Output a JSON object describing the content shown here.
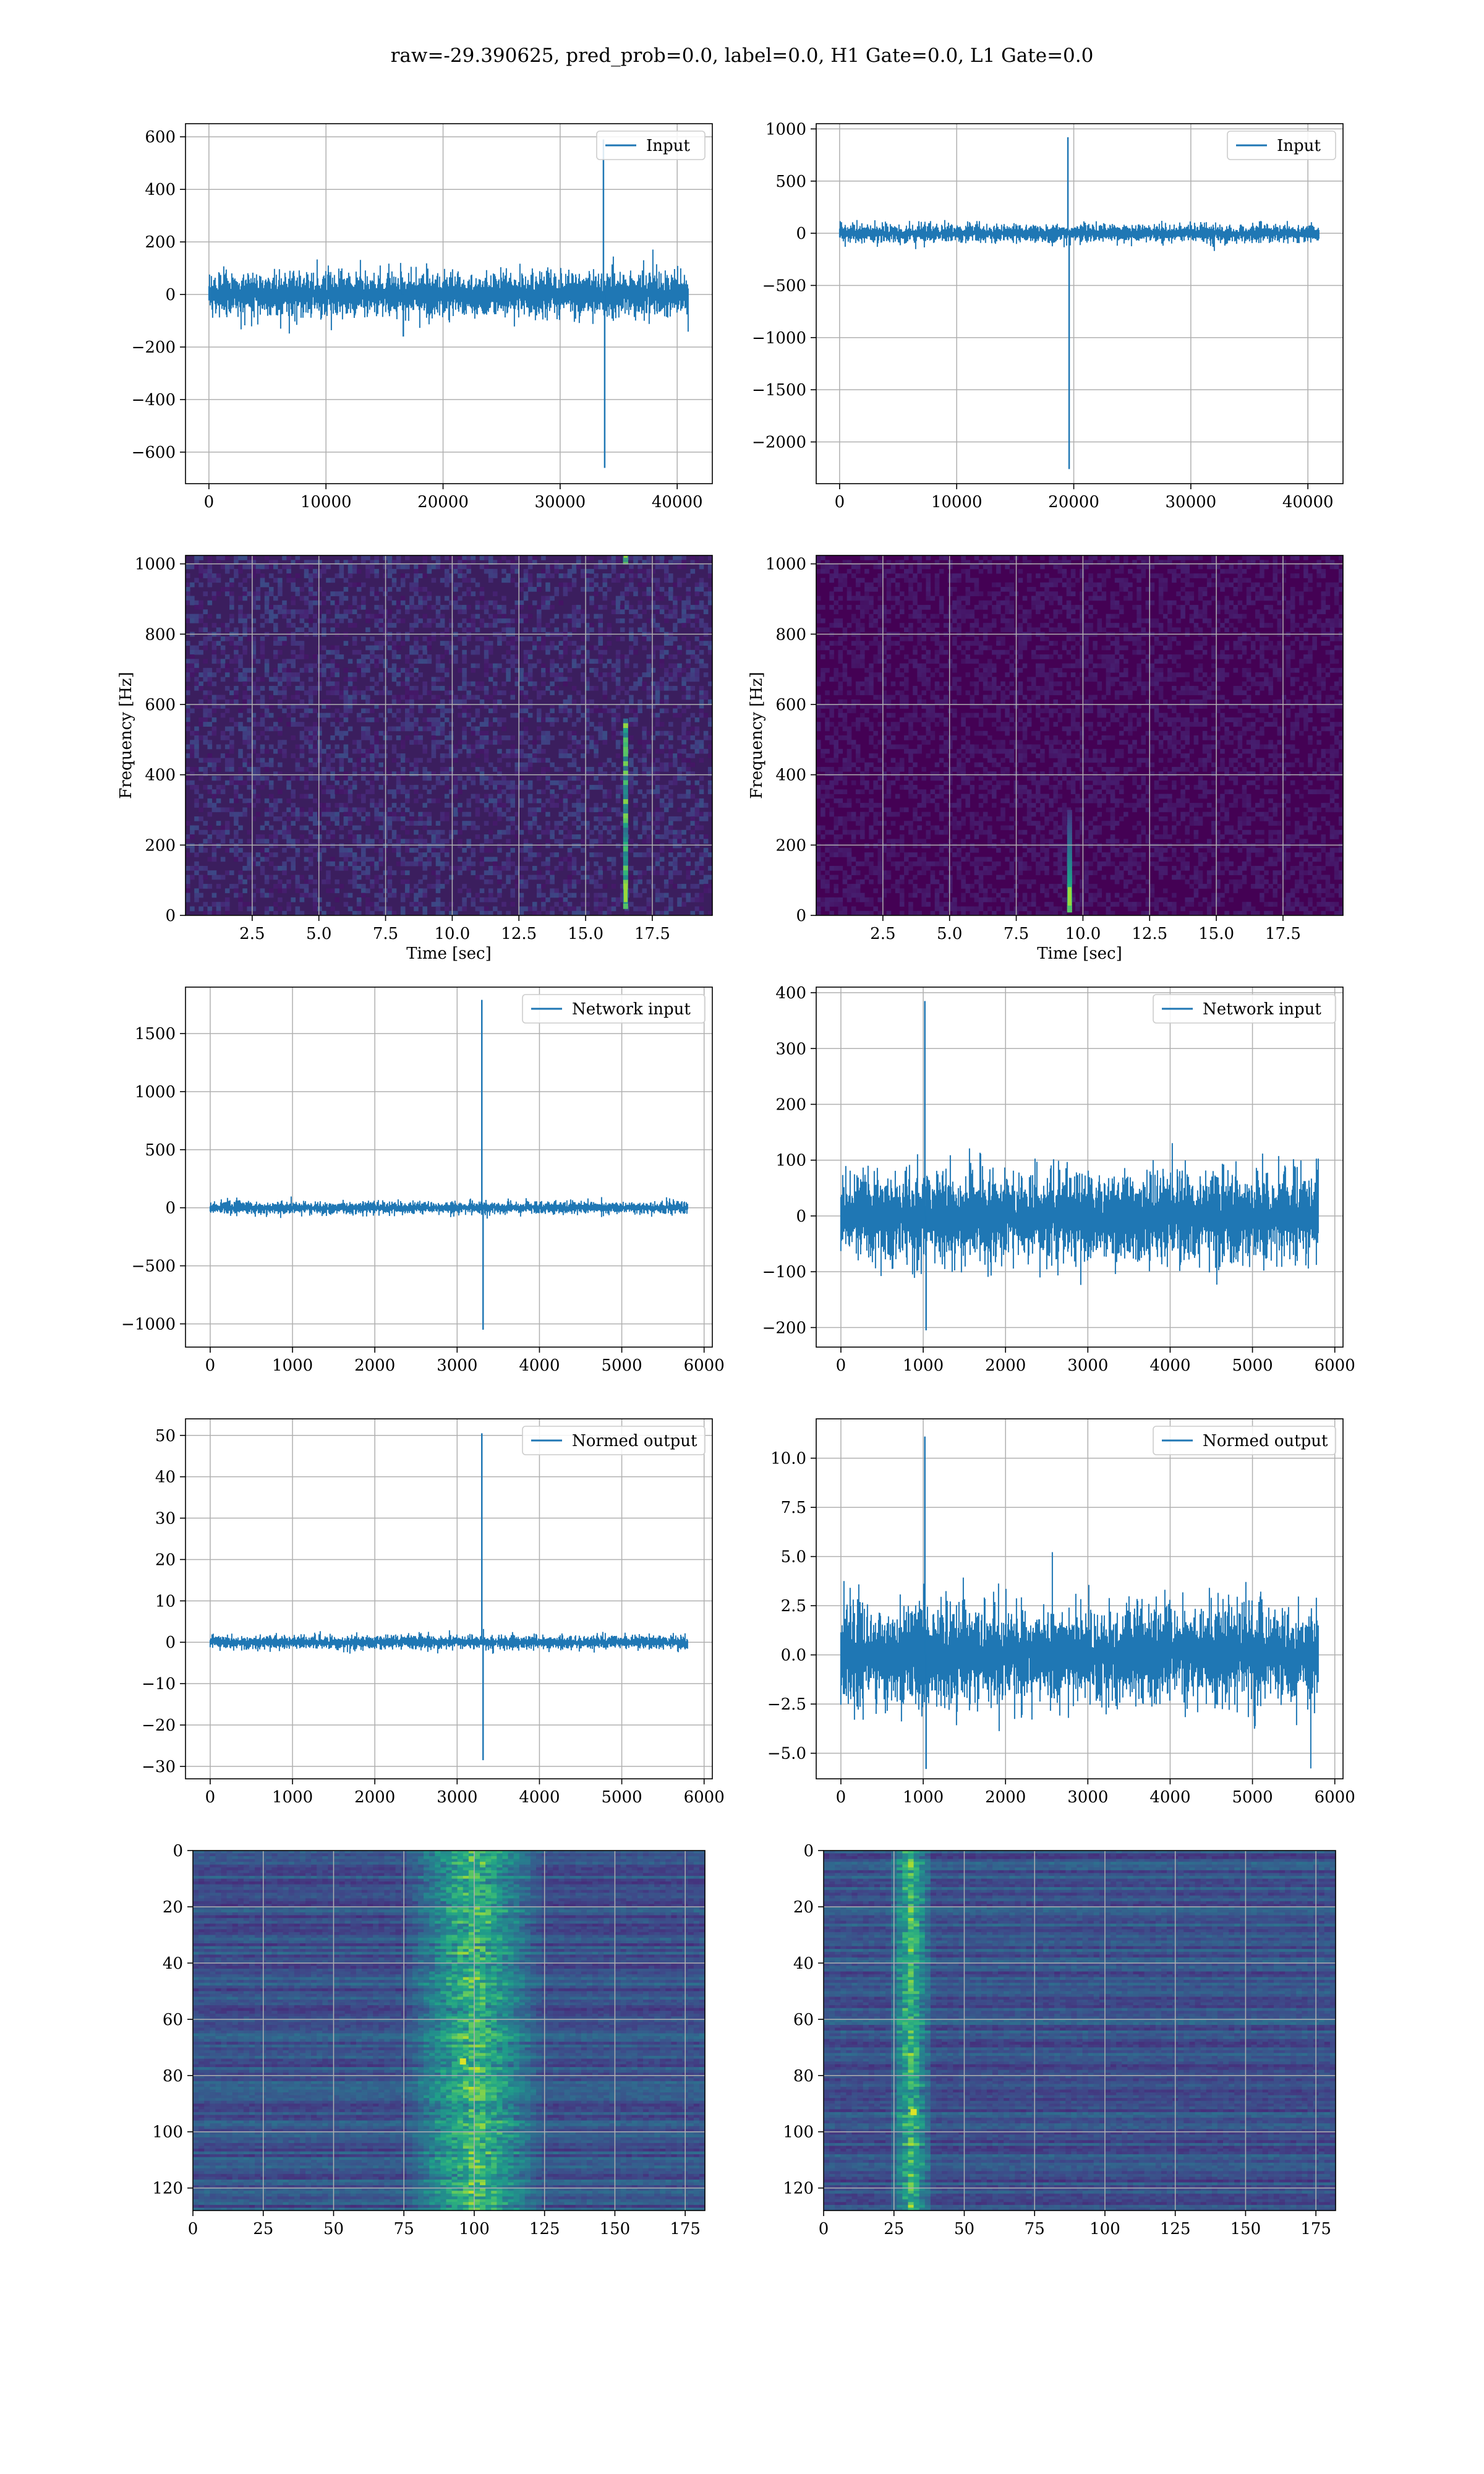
{
  "figure": {
    "suptitle": "raw=-29.390625, pred_prob=0.0, label=0.0, H1 Gate=0.0, L1 Gate=0.0",
    "line_color": "#1f77b4",
    "grid_color": "#b0b0b0"
  },
  "chart_data": [
    {
      "id": "input-h1",
      "type": "line",
      "xlabel": "",
      "ylabel": "",
      "xlim": [
        -2000,
        43000
      ],
      "ylim": [
        -720,
        650
      ],
      "xticks": [
        0,
        10000,
        20000,
        30000,
        40000
      ],
      "yticks": [
        -600,
        -400,
        -200,
        0,
        200,
        400,
        600
      ],
      "xtick_labels": [
        "0",
        "10000",
        "20000",
        "30000",
        "40000"
      ],
      "ytick_labels": [
        "−600",
        "−400",
        "−200",
        "0",
        "200",
        "400",
        "600"
      ],
      "series": [
        {
          "name": "Input",
          "x_range": [
            0,
            40960
          ],
          "noise_amplitude": 70,
          "spikes": [
            {
              "x": 33700,
              "max": 590,
              "min": -660
            },
            {
              "x": 16500,
              "max": 20,
              "min": -160
            }
          ]
        }
      ]
    },
    {
      "id": "input-l1",
      "type": "line",
      "xlabel": "",
      "ylabel": "",
      "xlim": [
        -2000,
        43000
      ],
      "ylim": [
        -2400,
        1050
      ],
      "xticks": [
        0,
        10000,
        20000,
        30000,
        40000
      ],
      "yticks": [
        -2000,
        -1500,
        -1000,
        -500,
        0,
        500,
        1000
      ],
      "xtick_labels": [
        "0",
        "10000",
        "20000",
        "30000",
        "40000"
      ],
      "ytick_labels": [
        "−2000",
        "−1500",
        "−1000",
        "−500",
        "0",
        "500",
        "1000"
      ],
      "series": [
        {
          "name": "Input",
          "x_range": [
            0,
            40960
          ],
          "noise_amplitude": 70,
          "spikes": [
            {
              "x": 19500,
              "max": 920,
              "min": -2260
            }
          ]
        }
      ]
    },
    {
      "id": "spec-h1",
      "type": "heatmap",
      "xlabel": "Time [sec]",
      "ylabel": "Frequency [Hz]",
      "xlim": [
        0,
        19.75
      ],
      "ylim": [
        0,
        1024
      ],
      "xticks": [
        2.5,
        5.0,
        7.5,
        10.0,
        12.5,
        15.0,
        17.5
      ],
      "yticks": [
        0,
        200,
        400,
        600,
        800,
        1000
      ],
      "xtick_labels": [
        "2.5",
        "5.0",
        "7.5",
        "10.0",
        "12.5",
        "15.0",
        "17.5"
      ],
      "ytick_labels": [
        "0",
        "200",
        "400",
        "600",
        "800",
        "1000"
      ],
      "colormap": "viridis",
      "background": "#3b1e5e",
      "events": [
        {
          "time": 16.5,
          "freq_low": 20,
          "freq_high": 560
        },
        {
          "time": 16.5,
          "freq_low": 1000,
          "freq_high": 1024
        }
      ]
    },
    {
      "id": "spec-l1",
      "type": "heatmap",
      "xlabel": "Time [sec]",
      "ylabel": "Frequency [Hz]",
      "xlim": [
        0,
        19.75
      ],
      "ylim": [
        0,
        1024
      ],
      "xticks": [
        2.5,
        5.0,
        7.5,
        10.0,
        12.5,
        15.0,
        17.5
      ],
      "yticks": [
        0,
        200,
        400,
        600,
        800,
        1000
      ],
      "xtick_labels": [
        "2.5",
        "5.0",
        "7.5",
        "10.0",
        "12.5",
        "15.0",
        "17.5"
      ],
      "ytick_labels": [
        "0",
        "200",
        "400",
        "600",
        "800",
        "1000"
      ],
      "colormap": "viridis",
      "background": "#440154",
      "events": [
        {
          "time": 9.5,
          "freq_low": 10,
          "freq_high": 300
        }
      ]
    },
    {
      "id": "network-h1",
      "type": "line",
      "xlabel": "",
      "ylabel": "",
      "xlim": [
        -300,
        6100
      ],
      "ylim": [
        -1200,
        1900
      ],
      "xticks": [
        0,
        1000,
        2000,
        3000,
        4000,
        5000,
        6000
      ],
      "yticks": [
        -1000,
        -500,
        0,
        500,
        1000,
        1500
      ],
      "xtick_labels": [
        "0",
        "1000",
        "2000",
        "3000",
        "4000",
        "5000",
        "6000"
      ],
      "ytick_labels": [
        "−1000",
        "−500",
        "0",
        "500",
        "1000",
        "1500"
      ],
      "series": [
        {
          "name": "Network input",
          "x_range": [
            0,
            5800
          ],
          "noise_amplitude": 45,
          "spikes": [
            {
              "x": 3300,
              "max": 1790,
              "min": -1050
            }
          ]
        }
      ]
    },
    {
      "id": "network-l1",
      "type": "line",
      "xlabel": "",
      "ylabel": "",
      "xlim": [
        -300,
        6100
      ],
      "ylim": [
        -235,
        410
      ],
      "xticks": [
        0,
        1000,
        2000,
        3000,
        4000,
        5000,
        6000
      ],
      "yticks": [
        -200,
        -100,
        0,
        100,
        200,
        300,
        400
      ],
      "xtick_labels": [
        "0",
        "1000",
        "2000",
        "3000",
        "4000",
        "5000",
        "6000"
      ],
      "ytick_labels": [
        "−200",
        "−100",
        "0",
        "100",
        "200",
        "300",
        "400"
      ],
      "series": [
        {
          "name": "Network input",
          "x_range": [
            0,
            5800
          ],
          "noise_amplitude": 65,
          "spikes": [
            {
              "x": 1020,
              "max": 385,
              "min": -205
            }
          ]
        }
      ]
    },
    {
      "id": "normed-h1",
      "type": "line",
      "xlabel": "",
      "ylabel": "",
      "xlim": [
        -300,
        6100
      ],
      "ylim": [
        -33,
        54
      ],
      "xticks": [
        0,
        1000,
        2000,
        3000,
        4000,
        5000,
        6000
      ],
      "yticks": [
        -30,
        -20,
        -10,
        0,
        10,
        20,
        30,
        40,
        50
      ],
      "xtick_labels": [
        "0",
        "1000",
        "2000",
        "3000",
        "4000",
        "5000",
        "6000"
      ],
      "ytick_labels": [
        "−30",
        "−20",
        "−10",
        "0",
        "10",
        "20",
        "30",
        "40",
        "50"
      ],
      "series": [
        {
          "name": "Normed output",
          "x_range": [
            0,
            5800
          ],
          "noise_amplitude": 1.4,
          "spikes": [
            {
              "x": 3300,
              "max": 50.5,
              "min": -28.5
            }
          ]
        }
      ]
    },
    {
      "id": "normed-l1",
      "type": "line",
      "xlabel": "",
      "ylabel": "",
      "xlim": [
        -300,
        6100
      ],
      "ylim": [
        -6.3,
        12.0
      ],
      "xticks": [
        0,
        1000,
        2000,
        3000,
        4000,
        5000,
        6000
      ],
      "yticks": [
        -5.0,
        -2.5,
        0.0,
        2.5,
        5.0,
        7.5,
        10.0
      ],
      "xtick_labels": [
        "0",
        "1000",
        "2000",
        "3000",
        "4000",
        "5000",
        "6000"
      ],
      "ytick_labels": [
        "−5.0",
        "−2.5",
        "0.0",
        "2.5",
        "5.0",
        "7.5",
        "10.0"
      ],
      "series": [
        {
          "name": "Normed output",
          "x_range": [
            0,
            5800
          ],
          "noise_amplitude": 2.0,
          "spikes": [
            {
              "x": 1020,
              "max": 11.1,
              "min": -5.8
            }
          ]
        }
      ]
    },
    {
      "id": "features-h1",
      "type": "heatmap",
      "xlabel": "",
      "ylabel": "",
      "xlim": [
        0,
        182
      ],
      "ylim": [
        128,
        0
      ],
      "xticks": [
        0,
        25,
        50,
        75,
        100,
        125,
        150,
        175
      ],
      "yticks": [
        0,
        20,
        40,
        60,
        80,
        100,
        120
      ],
      "xtick_labels": [
        "0",
        "25",
        "50",
        "75",
        "100",
        "125",
        "150",
        "175"
      ],
      "ytick_labels": [
        "0",
        "20",
        "40",
        "60",
        "80",
        "100",
        "120"
      ],
      "colormap": "viridis",
      "background": "#3e2a70",
      "events": [
        {
          "x_center": 100,
          "x_width": 25,
          "hot_x": 96,
          "hot_y": 75
        }
      ]
    },
    {
      "id": "features-l1",
      "type": "heatmap",
      "xlabel": "",
      "ylabel": "",
      "xlim": [
        0,
        182
      ],
      "ylim": [
        128,
        0
      ],
      "xticks": [
        0,
        25,
        50,
        75,
        100,
        125,
        150,
        175
      ],
      "yticks": [
        0,
        20,
        40,
        60,
        80,
        100,
        120
      ],
      "xtick_labels": [
        "0",
        "25",
        "50",
        "75",
        "100",
        "125",
        "150",
        "175"
      ],
      "ytick_labels": [
        "0",
        "20",
        "40",
        "60",
        "80",
        "100",
        "120"
      ],
      "colormap": "viridis",
      "background": "#3e2a70",
      "events": [
        {
          "x_center": 31,
          "x_width": 8,
          "hot_x": 32,
          "hot_y": 93
        }
      ]
    }
  ]
}
